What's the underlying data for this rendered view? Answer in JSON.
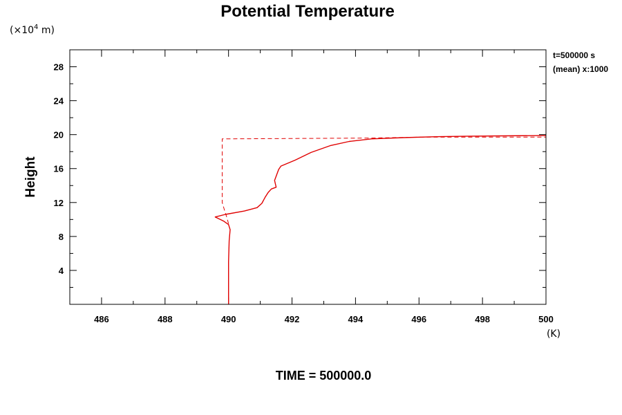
{
  "chart_data": {
    "type": "line",
    "title": "Potential Temperature",
    "ylabel": "Height",
    "y_unit_prefix": "(×10",
    "y_unit_exp": "4",
    "y_unit_suffix": " m)",
    "x_unit": "(K)",
    "xlim": [
      485,
      500
    ],
    "ylim": [
      0,
      30
    ],
    "xticks": [
      486,
      488,
      490,
      492,
      494,
      496,
      498,
      500
    ],
    "yticks": [
      4,
      8,
      12,
      16,
      20,
      24,
      28
    ],
    "annotations": {
      "time_label": "t=500000 s",
      "mean_label": "(mean) x:1000"
    },
    "footer": "TIME = 500000.0",
    "series": [
      {
        "style": "solid",
        "color": "#e00000",
        "x": [
          490.0,
          490.0,
          490.02,
          490.05,
          490.0,
          489.85,
          489.58,
          489.9,
          490.5,
          490.9,
          491.05,
          491.15,
          491.25,
          491.35,
          491.5,
          491.45,
          491.52,
          491.58,
          491.65,
          492.1,
          492.6,
          493.2,
          493.8,
          494.5,
          495.5,
          496.5,
          497.5,
          498.5,
          500.0
        ],
        "y": [
          0.0,
          5.0,
          7.5,
          8.8,
          9.4,
          9.8,
          10.3,
          10.6,
          11.0,
          11.4,
          11.9,
          12.6,
          13.2,
          13.6,
          13.8,
          14.6,
          15.3,
          15.9,
          16.3,
          17.0,
          17.9,
          18.7,
          19.2,
          19.5,
          19.65,
          19.75,
          19.82,
          19.85,
          19.9
        ]
      },
      {
        "style": "dashed",
        "color": "#e00000",
        "x": [
          490.0,
          489.95,
          489.88,
          489.8,
          489.8,
          494.5,
          496.0,
          500.0
        ],
        "y": [
          9.5,
          10.2,
          11.0,
          12.0,
          19.5,
          19.6,
          19.7,
          19.7
        ]
      }
    ]
  }
}
